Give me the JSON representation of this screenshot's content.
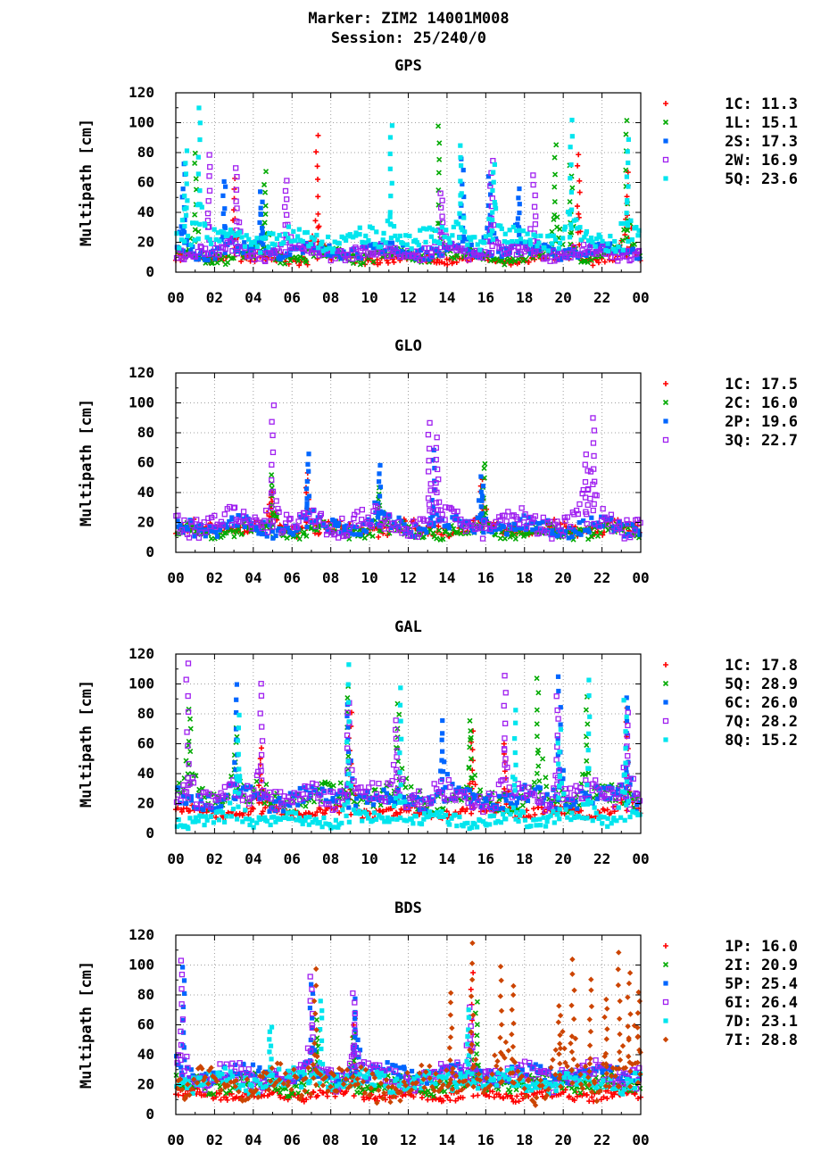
{
  "header": {
    "marker": "Marker: ZIM2 14001M008",
    "session": "Session: 25/240/0"
  },
  "chart_data": [
    {
      "type": "scatter",
      "title": "GPS",
      "xlabel": "",
      "ylabel": "Multipath [cm]",
      "xlim": [
        0,
        24
      ],
      "ylim": [
        0,
        120
      ],
      "grid": true,
      "legend_position": "right",
      "x_tick_labels": [
        "00",
        "02",
        "04",
        "06",
        "08",
        "10",
        "12",
        "14",
        "16",
        "18",
        "20",
        "22",
        "00"
      ],
      "y_tick_labels": [
        "0",
        "20",
        "40",
        "60",
        "80",
        "100",
        "120"
      ],
      "series": [
        {
          "name": "1C",
          "rms": "11.3",
          "color": "#ff0000",
          "marker": "plus",
          "base": 9,
          "spread": 3,
          "peak": 105,
          "spikes": [
            3.0,
            7.3,
            20.8,
            23.3
          ]
        },
        {
          "name": "1L",
          "rms": "15.1",
          "color": "#00aa00",
          "marker": "cross",
          "base": 11,
          "spread": 4,
          "peak": 112,
          "spikes": [
            1.0,
            4.6,
            13.6,
            19.6,
            20.4,
            23.3
          ]
        },
        {
          "name": "2S",
          "rms": "17.3",
          "color": "#0066ff",
          "marker": "square",
          "base": 14,
          "spread": 4,
          "peak": 84,
          "spikes": [
            0.4,
            2.5,
            4.4,
            14.8,
            16.2,
            17.7
          ]
        },
        {
          "name": "2W",
          "rms": "16.9",
          "color": "#a020f0",
          "marker": "opensquare",
          "base": 13,
          "spread": 4,
          "peak": 83,
          "spikes": [
            1.7,
            3.1,
            5.7,
            13.7,
            16.3,
            18.5
          ]
        },
        {
          "name": "5Q",
          "rms": "23.6",
          "color": "#00e5ee",
          "marker": "square",
          "base": 22,
          "spread": 6,
          "peak": 115,
          "spikes": [
            0.5,
            1.2,
            11.1,
            14.7,
            16.4,
            20.4,
            23.3
          ]
        }
      ]
    },
    {
      "type": "scatter",
      "title": "GLO",
      "xlabel": "",
      "ylabel": "Multipath [cm]",
      "xlim": [
        0,
        24
      ],
      "ylim": [
        0,
        120
      ],
      "grid": true,
      "legend_position": "right",
      "x_tick_labels": [
        "00",
        "02",
        "04",
        "06",
        "08",
        "10",
        "12",
        "14",
        "16",
        "18",
        "20",
        "22",
        "00"
      ],
      "y_tick_labels": [
        "0",
        "20",
        "40",
        "60",
        "80",
        "100",
        "120"
      ],
      "series": [
        {
          "name": "1C",
          "rms": "17.5",
          "color": "#ff0000",
          "marker": "plus",
          "base": 16,
          "spread": 4,
          "peak": 60,
          "spikes": [
            4.9,
            6.8,
            15.8
          ]
        },
        {
          "name": "2C",
          "rms": "16.0",
          "color": "#00aa00",
          "marker": "cross",
          "base": 14,
          "spread": 4,
          "peak": 68,
          "spikes": [
            5.0,
            10.5,
            15.9
          ]
        },
        {
          "name": "2P",
          "rms": "19.6",
          "color": "#0066ff",
          "marker": "square",
          "base": 17,
          "spread": 5,
          "peak": 76,
          "spikes": [
            6.8,
            10.5,
            15.8,
            13.3
          ]
        },
        {
          "name": "3Q",
          "rms": "22.7",
          "color": "#a020f0",
          "marker": "opensquare",
          "base": 20,
          "spread": 7,
          "peak": 101,
          "spikes": [
            5.0,
            13.1,
            13.5,
            21.2,
            21.6
          ]
        }
      ]
    },
    {
      "type": "scatter",
      "title": "GAL",
      "xlabel": "",
      "ylabel": "Multipath [cm]",
      "xlim": [
        0,
        24
      ],
      "ylim": [
        0,
        120
      ],
      "grid": true,
      "legend_position": "right",
      "x_tick_labels": [
        "00",
        "02",
        "04",
        "06",
        "08",
        "10",
        "12",
        "14",
        "16",
        "18",
        "20",
        "22",
        "00"
      ],
      "y_tick_labels": [
        "0",
        "20",
        "40",
        "60",
        "80",
        "100",
        "120"
      ],
      "series": [
        {
          "name": "1C",
          "rms": "17.8",
          "color": "#ff0000",
          "marker": "plus",
          "base": 14,
          "spread": 3,
          "peak": 90,
          "spikes": [
            4.4,
            9.0,
            15.3,
            17.0,
            23.3
          ]
        },
        {
          "name": "5Q",
          "rms": "28.9",
          "color": "#00aa00",
          "marker": "cross",
          "base": 24,
          "spread": 7,
          "peak": 111,
          "spikes": [
            0.7,
            3.1,
            8.9,
            11.5,
            15.2,
            18.7,
            21.2
          ]
        },
        {
          "name": "6C",
          "rms": "26.0",
          "color": "#0066ff",
          "marker": "square",
          "base": 23,
          "spread": 6,
          "peak": 117,
          "spikes": [
            3.1,
            8.9,
            13.8,
            19.8,
            23.3
          ]
        },
        {
          "name": "7Q",
          "rms": "28.2",
          "color": "#a020f0",
          "marker": "opensquare",
          "base": 25,
          "spread": 7,
          "peak": 117,
          "spikes": [
            0.6,
            4.4,
            8.9,
            11.4,
            17.0,
            19.7,
            23.3
          ]
        },
        {
          "name": "8Q",
          "rms": "15.2",
          "color": "#00e5ee",
          "marker": "square",
          "base": 9,
          "spread": 4,
          "peak": 117,
          "spikes": [
            3.2,
            8.9,
            11.6,
            17.5,
            19.8,
            21.3,
            23.2
          ]
        }
      ]
    },
    {
      "type": "scatter",
      "title": "BDS",
      "xlabel": "",
      "ylabel": "Multipath [cm]",
      "xlim": [
        0,
        24
      ],
      "ylim": [
        0,
        120
      ],
      "grid": true,
      "legend_position": "right",
      "x_tick_labels": [
        "00",
        "02",
        "04",
        "06",
        "08",
        "10",
        "12",
        "14",
        "16",
        "18",
        "20",
        "22",
        "00"
      ],
      "y_tick_labels": [
        "0",
        "20",
        "40",
        "60",
        "80",
        "100",
        "120"
      ],
      "series": [
        {
          "name": "1P",
          "rms": "16.0",
          "color": "#ff0000",
          "marker": "plus",
          "base": 13,
          "spread": 3,
          "peak": 108,
          "spikes": [
            9.2,
            15.3
          ]
        },
        {
          "name": "2I",
          "rms": "20.9",
          "color": "#00aa00",
          "marker": "cross",
          "base": 20,
          "spread": 5,
          "peak": 83,
          "spikes": [
            7.3,
            9.2,
            15.5
          ]
        },
        {
          "name": "5P",
          "rms": "25.4",
          "color": "#0066ff",
          "marker": "square",
          "base": 27,
          "spread": 5,
          "peak": 116,
          "spikes": [
            0.4,
            7.0,
            9.3
          ]
        },
        {
          "name": "6I",
          "rms": "26.4",
          "color": "#a020f0",
          "marker": "opensquare",
          "base": 26,
          "spread": 7,
          "peak": 108,
          "spikes": [
            0.3,
            7.0,
            9.2,
            15.2
          ]
        },
        {
          "name": "7D",
          "rms": "23.1",
          "color": "#00e5ee",
          "marker": "square",
          "base": 22,
          "spread": 6,
          "peak": 80,
          "spikes": [
            4.9,
            7.5,
            15.1
          ]
        },
        {
          "name": "7I",
          "rms": "28.8",
          "color": "#cc4400",
          "marker": "diamond",
          "base": 20,
          "spread": 9,
          "peak": 118,
          "spikes": [
            7.2,
            14.2,
            15.3,
            16.8,
            17.4,
            19.8,
            20.5,
            21.4,
            22.2,
            22.9,
            23.4,
            23.9
          ]
        }
      ]
    }
  ]
}
